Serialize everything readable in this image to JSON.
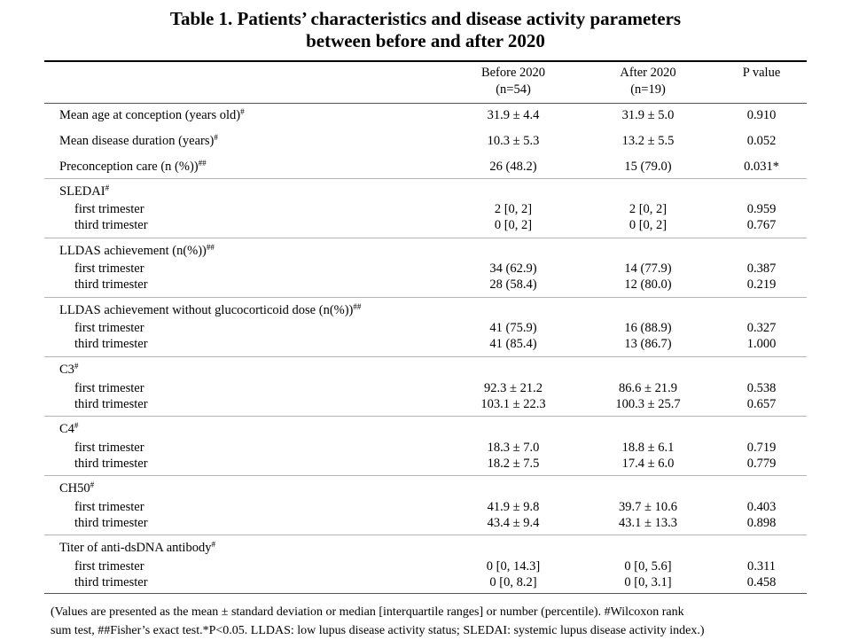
{
  "title": {
    "line1": "Table 1. Patients’ characteristics and disease activity parameters",
    "line2": "between before and after 2020"
  },
  "header": {
    "before_label": "Before 2020",
    "before_n": "(n=54)",
    "after_label": "After 2020",
    "after_n": "(n=19)",
    "p_label": "P value"
  },
  "top_rows": [
    {
      "label": "Mean age at conception (years old)",
      "sup": "#",
      "before": "31.9 ± 4.4",
      "after": "31.9 ± 5.0",
      "p": "0.910"
    },
    {
      "label": "Mean disease duration (years)",
      "sup": "#",
      "before": "10.3 ± 5.3",
      "after": "13.2 ± 5.5",
      "p": "0.052"
    },
    {
      "label": "Preconception care (n (%))",
      "sup": "##",
      "before": "26 (48.2)",
      "after": "15 (79.0)",
      "p": "0.031*"
    }
  ],
  "groups": [
    {
      "label": "SLEDAI",
      "sup": "#",
      "rows": [
        {
          "label": "first trimester",
          "before": "2 [0, 2]",
          "after": "2 [0, 2]",
          "p": "0.959"
        },
        {
          "label": "third trimester",
          "before": "0 [0, 2]",
          "after": "0 [0, 2]",
          "p": "0.767"
        }
      ]
    },
    {
      "label": "LLDAS achievement (n(%))",
      "sup": "##",
      "rows": [
        {
          "label": "first trimester",
          "before": "34 (62.9)",
          "after": "14 (77.9)",
          "p": "0.387"
        },
        {
          "label": "third trimester",
          "before": "28 (58.4)",
          "after": "12 (80.0)",
          "p": "0.219"
        }
      ]
    },
    {
      "label": "LLDAS achievement without glucocorticoid dose (n(%))",
      "sup": "##",
      "rows": [
        {
          "label": "first trimester",
          "before": "41 (75.9)",
          "after": "16 (88.9)",
          "p": "0.327"
        },
        {
          "label": "third trimester",
          "before": "41 (85.4)",
          "after": "13 (86.7)",
          "p": "1.000"
        }
      ]
    },
    {
      "label": "C3",
      "sup": "#",
      "rows": [
        {
          "label": "first trimester",
          "before": "92.3 ± 21.2",
          "after": "86.6 ± 21.9",
          "p": "0.538"
        },
        {
          "label": "third trimester",
          "before": "103.1 ± 22.3",
          "after": "100.3 ± 25.7",
          "p": "0.657"
        }
      ]
    },
    {
      "label": "C4",
      "sup": "#",
      "rows": [
        {
          "label": "first trimester",
          "before": "18.3 ± 7.0",
          "after": "18.8 ± 6.1",
          "p": "0.719"
        },
        {
          "label": "third trimester",
          "before": "18.2 ± 7.5",
          "after": "17.4 ± 6.0",
          "p": "0.779"
        }
      ]
    },
    {
      "label": "CH50",
      "sup": "#",
      "rows": [
        {
          "label": "first trimester",
          "before": "41.9 ± 9.8",
          "after": "39.7 ± 10.6",
          "p": "0.403"
        },
        {
          "label": "third trimester",
          "before": "43.4 ± 9.4",
          "after": "43.1 ± 13.3",
          "p": "0.898"
        }
      ]
    },
    {
      "label": "Titer of anti-dsDNA antibody",
      "sup": "#",
      "rows": [
        {
          "label": "first trimester",
          "before": "0 [0, 14.3]",
          "after": "0 [0, 5.6]",
          "p": "0.311"
        },
        {
          "label": "third trimester",
          "before": "0 [0, 8.2]",
          "after": "0 [0, 3.1]",
          "p": "0.458"
        }
      ]
    }
  ],
  "footnote": {
    "line1": "(Values are presented as the mean ± standard deviation or median [interquartile ranges] or number (percentile). #Wilcoxon rank",
    "line2": "sum test, ##Fisher’s exact test.*P<0.05. LLDAS: low lupus disease activity status; SLEDAI: systemic lupus disease activity index.)"
  }
}
